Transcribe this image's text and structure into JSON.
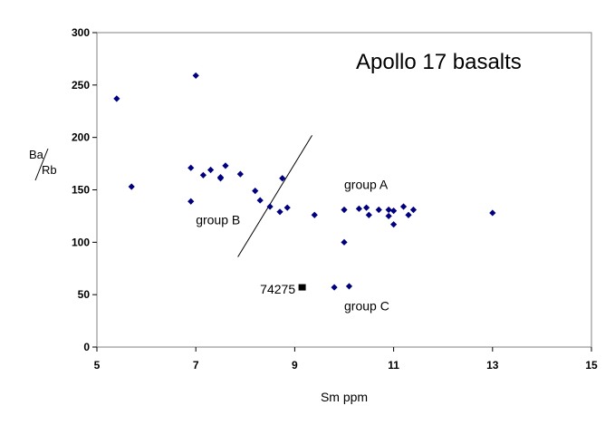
{
  "chart_data": {
    "type": "scatter",
    "title": "Apollo 17 basalts",
    "xlabel": "Sm ppm",
    "ylabel_top": "Ba",
    "ylabel_bottom": "Rb",
    "xlim": [
      5,
      15
    ],
    "ylim": [
      0,
      300
    ],
    "xticks": [
      "5",
      "7",
      "9",
      "11",
      "13",
      "15"
    ],
    "yticks": [
      "0",
      "50",
      "100",
      "150",
      "200",
      "250",
      "300"
    ],
    "grid": false,
    "legend": "none",
    "marker_color": "#00007f",
    "highlight_color": "#000000",
    "series": [
      {
        "values": [
          {
            "x": 5.4,
            "y": 237
          },
          {
            "x": 5.7,
            "y": 153
          },
          {
            "x": 6.9,
            "y": 171
          },
          {
            "x": 6.9,
            "y": 139
          },
          {
            "x": 7.0,
            "y": 259
          },
          {
            "x": 7.15,
            "y": 164
          },
          {
            "x": 7.3,
            "y": 169
          },
          {
            "x": 7.5,
            "y": 162
          },
          {
            "x": 7.5,
            "y": 161
          },
          {
            "x": 7.6,
            "y": 173
          },
          {
            "x": 7.9,
            "y": 165
          },
          {
            "x": 8.2,
            "y": 149
          },
          {
            "x": 8.3,
            "y": 140
          },
          {
            "x": 8.5,
            "y": 134
          },
          {
            "x": 8.7,
            "y": 129
          },
          {
            "x": 8.75,
            "y": 161
          },
          {
            "x": 8.85,
            "y": 133
          },
          {
            "x": 9.4,
            "y": 126
          },
          {
            "x": 9.8,
            "y": 57
          },
          {
            "x": 10.0,
            "y": 131
          },
          {
            "x": 10.0,
            "y": 100
          },
          {
            "x": 10.1,
            "y": 58
          },
          {
            "x": 10.3,
            "y": 132
          },
          {
            "x": 10.45,
            "y": 133
          },
          {
            "x": 10.5,
            "y": 126
          },
          {
            "x": 10.7,
            "y": 131
          },
          {
            "x": 10.9,
            "y": 131
          },
          {
            "x": 10.9,
            "y": 125
          },
          {
            "x": 11.0,
            "y": 130
          },
          {
            "x": 11.0,
            "y": 117
          },
          {
            "x": 11.2,
            "y": 134
          },
          {
            "x": 11.3,
            "y": 126
          },
          {
            "x": 11.4,
            "y": 131
          },
          {
            "x": 13.0,
            "y": 128
          }
        ]
      },
      {
        "label": "74275",
        "values": [
          {
            "x": 9.15,
            "y": 57
          }
        ]
      }
    ],
    "divider_line": [
      {
        "x": 7.85,
        "y": 86
      },
      {
        "x": 9.35,
        "y": 202
      }
    ],
    "annotations": [
      {
        "text": "group A",
        "x": 10.0,
        "y": 151
      },
      {
        "text": "group B",
        "x": 7.0,
        "y": 117
      },
      {
        "text": "group C",
        "x": 10.0,
        "y": 35
      },
      {
        "text": "74275",
        "x": 8.3,
        "y": 51
      }
    ]
  }
}
